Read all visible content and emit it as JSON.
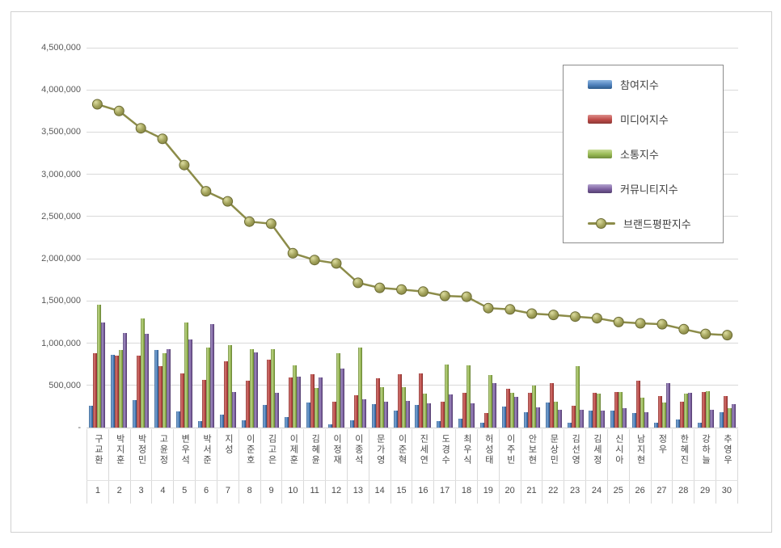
{
  "page": {
    "background": "#ffffff",
    "frame_border_color": "#d0d0d0",
    "gridline_color": "#d9d9d9"
  },
  "legend": {
    "position": "upper-right",
    "items": [
      {
        "key": "participation",
        "label": "참여지수",
        "kind": "bar",
        "color": "#4f81bd"
      },
      {
        "key": "media",
        "label": "미디어지수",
        "kind": "bar",
        "color": "#be4b48"
      },
      {
        "key": "communication",
        "label": "소통지수",
        "kind": "bar",
        "color": "#98b954"
      },
      {
        "key": "community",
        "label": "커뮤니티지수",
        "kind": "bar",
        "color": "#7d60a0"
      },
      {
        "key": "brand_reputation",
        "label": "브랜드평판지수",
        "kind": "line",
        "color": "#8c8c49"
      }
    ]
  },
  "chart_data": {
    "type": "bar",
    "title": "",
    "xlabel": "",
    "ylabel": "",
    "ylim": [
      0,
      4500000
    ],
    "grid": true,
    "legend_position": "upper right",
    "y_tick_labels": [
      "-",
      "500,000",
      "1,000,000",
      "1,500,000",
      "2,000,000",
      "2,500,000",
      "3,000,000",
      "3,500,000",
      "4,000,000",
      "4,500,000"
    ],
    "categories": [
      "구교환",
      "박지훈",
      "박정민",
      "고윤정",
      "변우석",
      "박서준",
      "지성",
      "이준호",
      "김고은",
      "이제훈",
      "김혜윤",
      "이정재",
      "이종석",
      "문가영",
      "이준혁",
      "진세연",
      "도경수",
      "최우식",
      "허성태",
      "이주빈",
      "안보현",
      "문상민",
      "김선영",
      "김세정",
      "신시아",
      "남지현",
      "정우",
      "한혜진",
      "강하늘",
      "추영우"
    ],
    "ranks": [
      1,
      2,
      3,
      4,
      5,
      6,
      7,
      8,
      9,
      10,
      11,
      12,
      13,
      14,
      15,
      16,
      17,
      18,
      19,
      20,
      21,
      22,
      23,
      24,
      25,
      26,
      27,
      28,
      29,
      30
    ],
    "series": [
      {
        "key": "participation",
        "name": "참여지수",
        "kind": "bar",
        "color": "#4f81bd",
        "values": [
          260000,
          865000,
          325000,
          920000,
          190000,
          80000,
          155000,
          90000,
          270000,
          125000,
          295000,
          35000,
          90000,
          280000,
          205000,
          270000,
          80000,
          110000,
          60000,
          245000,
          180000,
          295000,
          60000,
          205000,
          205000,
          170000,
          55000,
          100000,
          55000,
          185000
        ]
      },
      {
        "key": "media",
        "name": "미디어지수",
        "kind": "bar",
        "color": "#be4b48",
        "values": [
          880000,
          850000,
          850000,
          730000,
          645000,
          565000,
          785000,
          555000,
          800000,
          590000,
          630000,
          310000,
          380000,
          580000,
          635000,
          640000,
          310000,
          410000,
          170000,
          460000,
          415000,
          530000,
          260000,
          410000,
          420000,
          560000,
          370000,
          310000,
          420000,
          370000
        ]
      },
      {
        "key": "communication",
        "name": "소통지수",
        "kind": "bar",
        "color": "#98b954",
        "values": [
          1460000,
          920000,
          1290000,
          885000,
          1240000,
          945000,
          975000,
          930000,
          925000,
          740000,
          470000,
          880000,
          950000,
          475000,
          480000,
          400000,
          750000,
          740000,
          625000,
          410000,
          500000,
          310000,
          730000,
          400000,
          420000,
          350000,
          295000,
          400000,
          435000,
          230000
        ]
      },
      {
        "key": "community",
        "name": "커뮤니티지수",
        "kind": "bar",
        "color": "#7d60a0",
        "values": [
          1245000,
          1125000,
          1110000,
          930000,
          1045000,
          1225000,
          425000,
          890000,
          410000,
          605000,
          590000,
          700000,
          335000,
          310000,
          315000,
          290000,
          395000,
          285000,
          530000,
          365000,
          235000,
          210000,
          210000,
          205000,
          230000,
          180000,
          525000,
          410000,
          210000,
          280000
        ]
      },
      {
        "key": "brand_reputation",
        "name": "브랜드평판지수",
        "kind": "line",
        "color": "#8c8c49",
        "values": [
          3830000,
          3750000,
          3545000,
          3420000,
          3110000,
          2800000,
          2680000,
          2440000,
          2415000,
          2065000,
          1985000,
          1945000,
          1715000,
          1655000,
          1635000,
          1610000,
          1560000,
          1550000,
          1415000,
          1400000,
          1350000,
          1335000,
          1315000,
          1295000,
          1250000,
          1235000,
          1225000,
          1165000,
          1110000,
          1095000
        ]
      }
    ]
  }
}
